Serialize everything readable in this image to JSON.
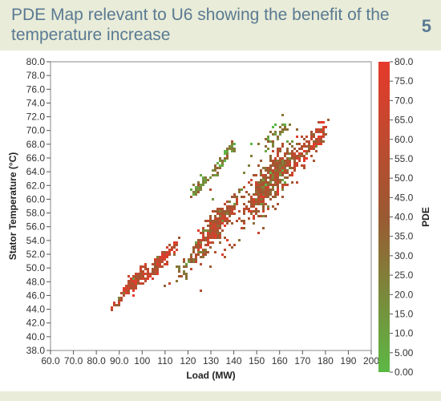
{
  "header": {
    "title": "PDE Map relevant to U6 showing the benefit of the temperature increase",
    "figure_number": "5"
  },
  "colors": {
    "header_bg": "#e9ecd8",
    "title": "#5a7a93",
    "pde_low": "#5cb845",
    "pde_mid": "#9a5a32",
    "pde_high": "#e53a2c"
  },
  "chart_data": {
    "type": "heatmap",
    "title": "",
    "xlabel": "Load (MW)",
    "ylabel": "Stator Temperature (°C)",
    "colorbar_label": "PDE",
    "xlim": [
      60,
      200
    ],
    "ylim": [
      38,
      80
    ],
    "colorbar_range": [
      0,
      80
    ],
    "x_ticks": [
      "60.0",
      "70.0",
      "80.0",
      "90.0",
      "100",
      "110",
      "120",
      "130",
      "140",
      "150",
      "160",
      "170",
      "180",
      "190",
      "200"
    ],
    "y_ticks": [
      "38.0",
      "40.0",
      "42.0",
      "44.0",
      "46.0",
      "48.0",
      "50.0",
      "52.0",
      "54.0",
      "56.0",
      "58.0",
      "60.0",
      "62.0",
      "64.0",
      "66.0",
      "68.0",
      "70.0",
      "72.0",
      "74.0",
      "76.0",
      "78.0",
      "80.0"
    ],
    "colorbar_ticks": [
      "0.00",
      "5.00",
      "10.0",
      "15.0",
      "20.0",
      "25.0",
      "30.0",
      "35.0",
      "40.0",
      "45.0",
      "50.0",
      "55.0",
      "60.0",
      "65.0",
      "70.0",
      "75.0",
      "80.0"
    ],
    "grid": false,
    "clusters": [
      {
        "x": 90,
        "y": 45.6,
        "spread_x": 2.0,
        "spread_y": 0.4,
        "pde": 50,
        "count": 30
      },
      {
        "x": 96,
        "y": 48.2,
        "spread_x": 3.0,
        "spread_y": 0.9,
        "pde": 62,
        "count": 90
      },
      {
        "x": 108,
        "y": 51.2,
        "spread_x": 3.6,
        "spread_y": 0.9,
        "pde": 60,
        "count": 110
      },
      {
        "x": 118,
        "y": 50.5,
        "spread_x": 4.0,
        "spread_y": 1.5,
        "pde": 30,
        "count": 35
      },
      {
        "x": 125,
        "y": 53.0,
        "spread_x": 2.6,
        "spread_y": 1.4,
        "pde": 45,
        "count": 60
      },
      {
        "x": 131,
        "y": 56.0,
        "spread_x": 3.4,
        "spread_y": 2.0,
        "pde": 52,
        "count": 190
      },
      {
        "x": 138,
        "y": 59.0,
        "spread_x": 3.0,
        "spread_y": 1.3,
        "pde": 40,
        "count": 50
      },
      {
        "x": 124,
        "y": 62.0,
        "spread_x": 1.8,
        "spread_y": 0.8,
        "pde": 20,
        "count": 45
      },
      {
        "x": 136,
        "y": 66.7,
        "spread_x": 2.0,
        "spread_y": 0.8,
        "pde": 22,
        "count": 40
      },
      {
        "x": 132,
        "y": 64.5,
        "spread_x": 2.5,
        "spread_y": 2.0,
        "pde": 25,
        "count": 25
      },
      {
        "x": 153,
        "y": 61.5,
        "spread_x": 3.8,
        "spread_y": 2.6,
        "pde": 48,
        "count": 260
      },
      {
        "x": 159,
        "y": 64.5,
        "spread_x": 4.0,
        "spread_y": 2.4,
        "pde": 38,
        "count": 200
      },
      {
        "x": 157,
        "y": 69.5,
        "spread_x": 5.0,
        "spread_y": 1.6,
        "pde": 25,
        "count": 40
      },
      {
        "x": 170,
        "y": 67.0,
        "spread_x": 5.0,
        "spread_y": 2.0,
        "pde": 55,
        "count": 110
      },
      {
        "x": 176,
        "y": 69.0,
        "spread_x": 2.5,
        "spread_y": 1.5,
        "pde": 65,
        "count": 45
      },
      {
        "x": 145,
        "y": 58.0,
        "spread_x": 10.0,
        "spread_y": 4.0,
        "pde": 55,
        "count": 60
      }
    ]
  }
}
